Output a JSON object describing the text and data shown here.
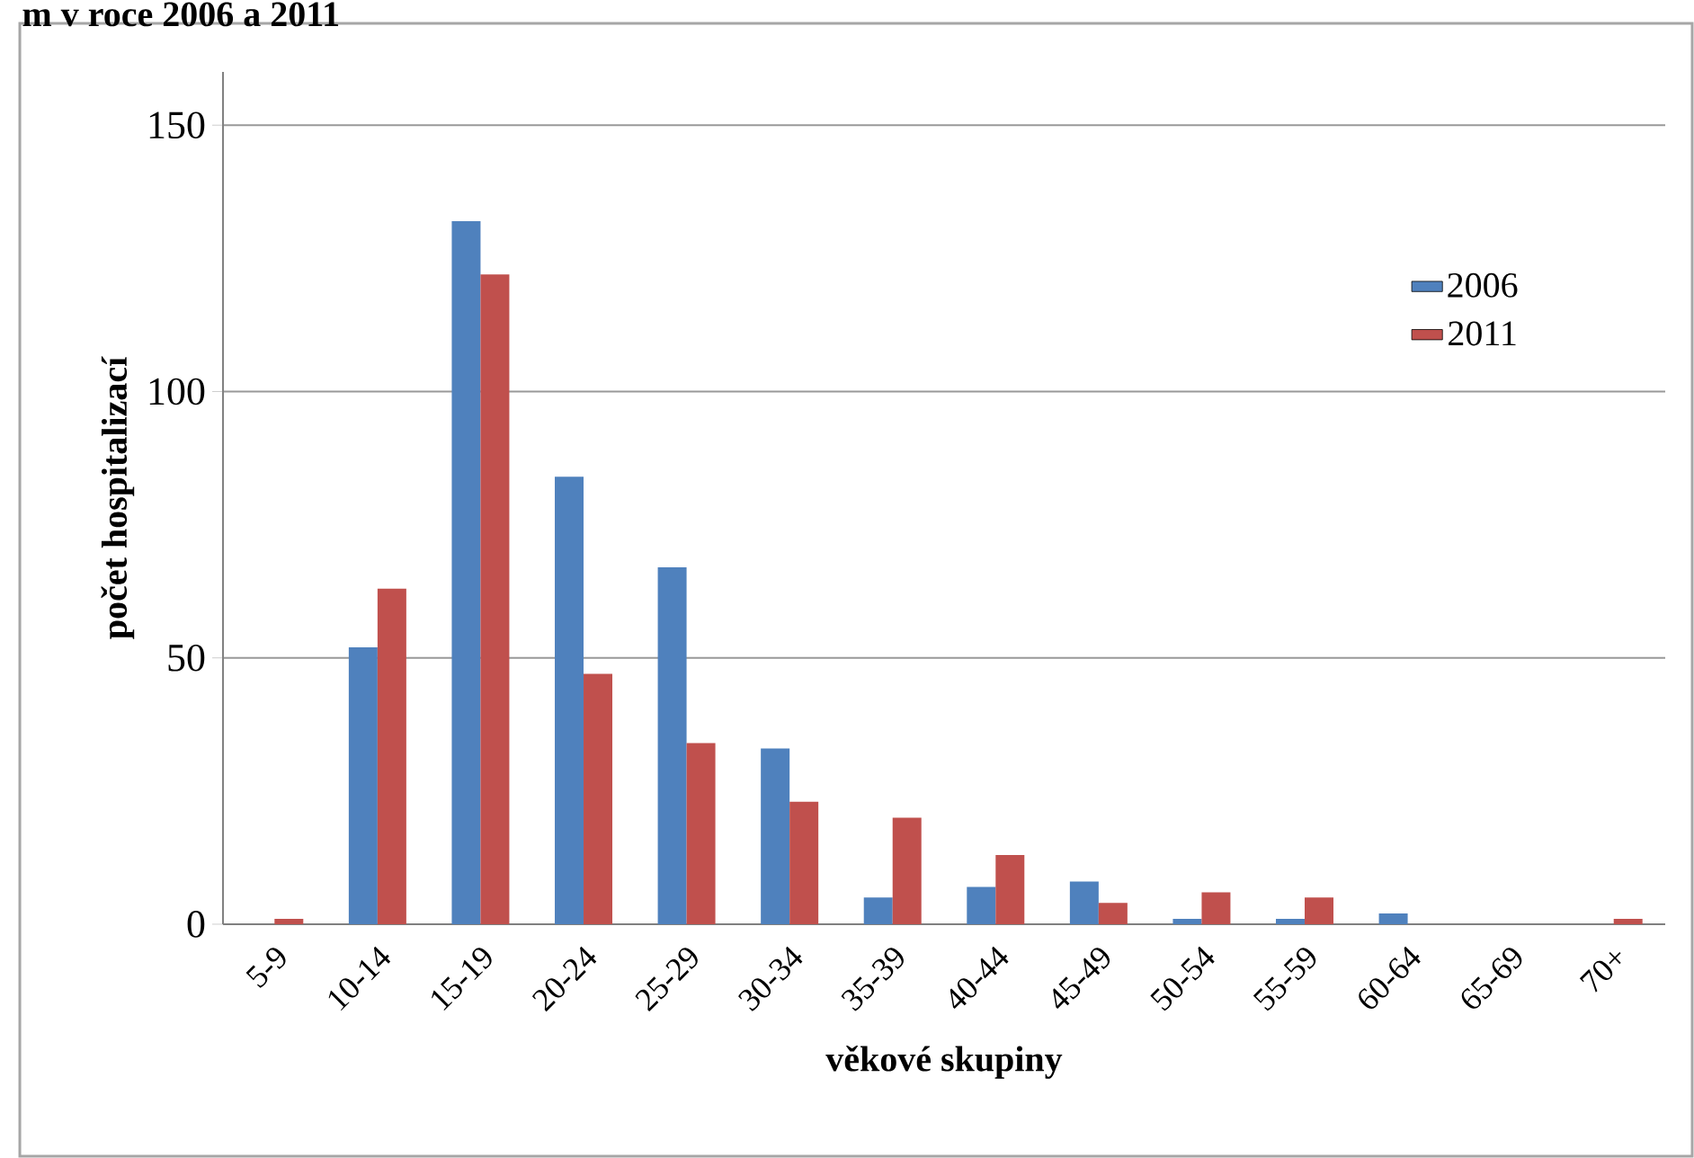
{
  "chart_data": {
    "type": "bar",
    "title": "m v roce 2006 a 2011",
    "xlabel": "věkové skupiny",
    "ylabel": "počet hospitalizací",
    "categories": [
      "5-9",
      "10-14",
      "15-19",
      "20-24",
      "25-29",
      "30-34",
      "35-39",
      "40-44",
      "45-49",
      "50-54",
      "55-59",
      "60-64",
      "65-69",
      "70+"
    ],
    "series": [
      {
        "name": "2006",
        "color": "#4f81bd",
        "values": [
          0,
          52,
          132,
          84,
          67,
          33,
          5,
          7,
          8,
          1,
          1,
          2,
          0,
          0
        ]
      },
      {
        "name": "2011",
        "color": "#c0504d",
        "values": [
          1,
          63,
          122,
          47,
          34,
          23,
          20,
          13,
          4,
          6,
          5,
          0,
          0,
          1
        ]
      }
    ],
    "ylim": [
      0,
      160
    ],
    "yticks": [
      0,
      50,
      100,
      150
    ],
    "grid": "y",
    "legend": "right"
  }
}
